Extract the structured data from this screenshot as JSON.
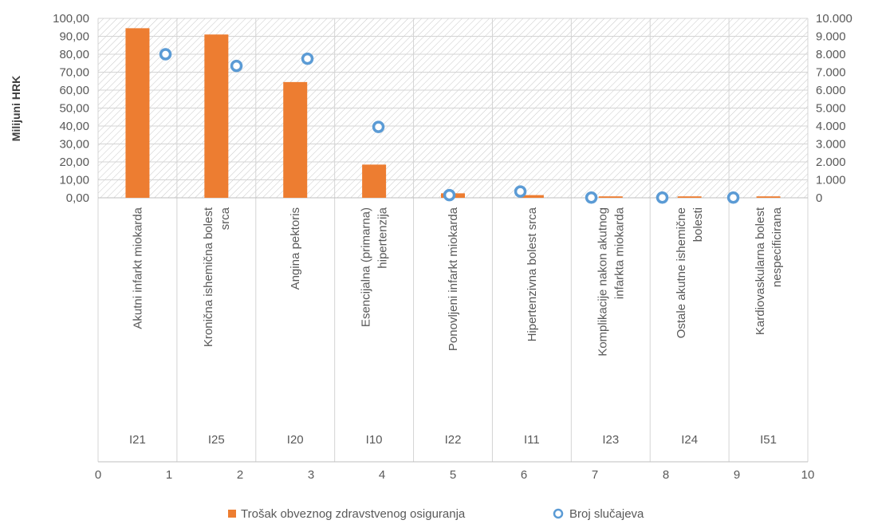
{
  "chart_data": {
    "type": "bar",
    "ylabel": "Milijuni HRK",
    "y_left_ticks": [
      "0,00",
      "10,00",
      "20,00",
      "30,00",
      "40,00",
      "50,00",
      "60,00",
      "70,00",
      "80,00",
      "90,00",
      "100,00"
    ],
    "y_right_ticks": [
      "0",
      "1.000",
      "2.000",
      "3.000",
      "4.000",
      "5.000",
      "6.000",
      "7.000",
      "8.000",
      "9.000",
      "10.000"
    ],
    "ylim_left": [
      0,
      100
    ],
    "ylim_right": [
      0,
      10000
    ],
    "x_ticks": [
      "0",
      "1",
      "2",
      "3",
      "4",
      "5",
      "6",
      "7",
      "8",
      "9",
      "10"
    ],
    "xlim": [
      0,
      10
    ],
    "categories": [
      {
        "code": "I21",
        "lines": [
          "Akutni infarkt miokarda"
        ]
      },
      {
        "code": "I25",
        "lines": [
          "Kronična ishemična bolest",
          "srca"
        ]
      },
      {
        "code": "I20",
        "lines": [
          "Angina pektoris"
        ]
      },
      {
        "code": "I10",
        "lines": [
          "Esencijalna (primarna)",
          "hipertenzija"
        ]
      },
      {
        "code": "I22",
        "lines": [
          "Ponovljeni infarkt miokarda"
        ]
      },
      {
        "code": "I11",
        "lines": [
          "Hipertenzivna bolest srca"
        ]
      },
      {
        "code": "I23",
        "lines": [
          "Komplikacije nakon akutnog",
          "infarkta miokarda"
        ]
      },
      {
        "code": "I24",
        "lines": [
          "Ostale akutne ishemične",
          "bolesti"
        ]
      },
      {
        "code": "I51",
        "lines": [
          "Kardiovaskularna bolest",
          "nespecificirana"
        ]
      }
    ],
    "series": [
      {
        "name": "Trošak obveznog zdravstvenog osiguranja",
        "kind": "bar",
        "axis": "left",
        "color": "#ED7D31",
        "values": [
          94.5,
          91.0,
          64.5,
          18.5,
          2.5,
          1.5,
          0.8,
          0.8,
          0.8
        ]
      },
      {
        "name": "Broj slučajeva",
        "kind": "scatter",
        "axis": "right",
        "color": "#5B9BD5",
        "points": [
          {
            "x": 0.95,
            "y": 8000
          },
          {
            "x": 1.95,
            "y": 7350
          },
          {
            "x": 2.95,
            "y": 7750
          },
          {
            "x": 3.95,
            "y": 3950
          },
          {
            "x": 4.95,
            "y": 150
          },
          {
            "x": 5.95,
            "y": 350
          },
          {
            "x": 6.95,
            "y": 10
          },
          {
            "x": 7.95,
            "y": 10
          },
          {
            "x": 8.95,
            "y": 10
          }
        ]
      }
    ],
    "legend": "bottom",
    "grid": true
  }
}
